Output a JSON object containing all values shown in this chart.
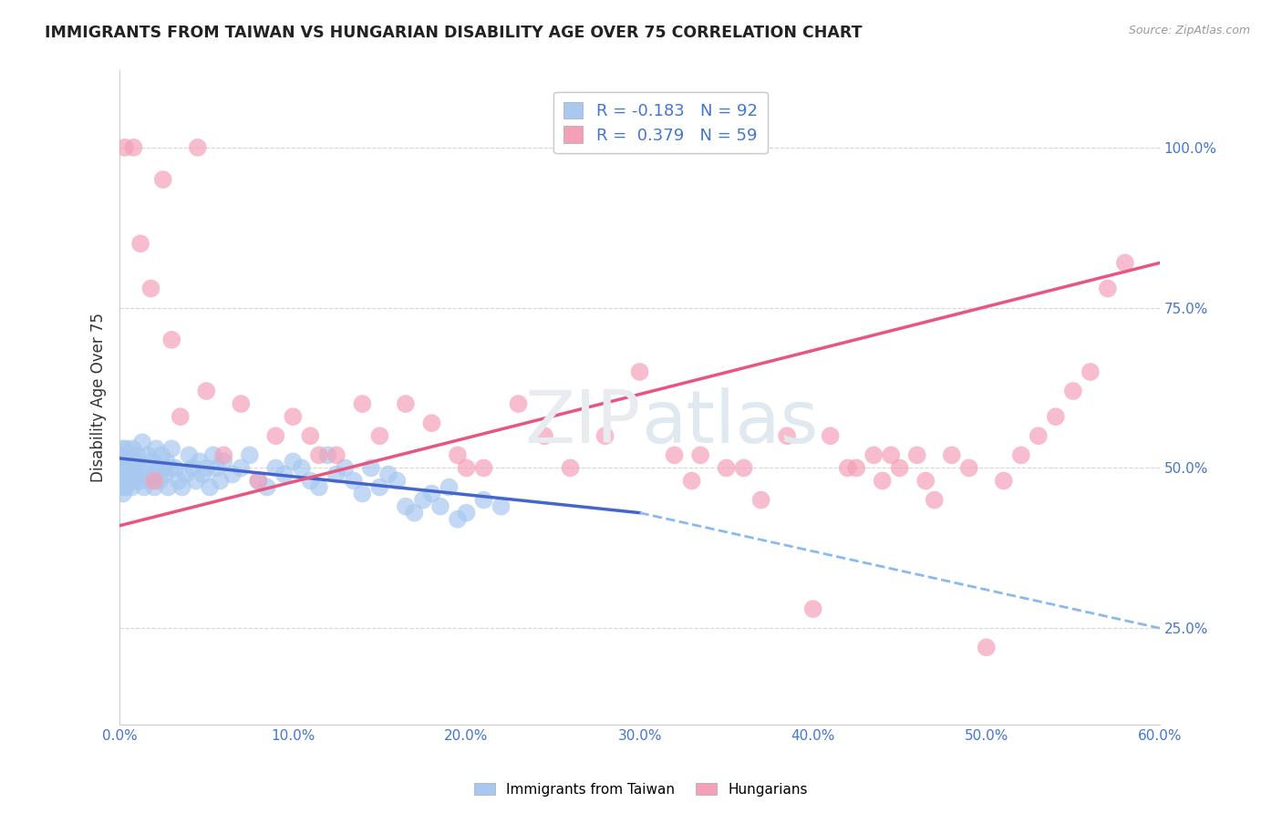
{
  "title": "IMMIGRANTS FROM TAIWAN VS HUNGARIAN DISABILITY AGE OVER 75 CORRELATION CHART",
  "source": "Source: ZipAtlas.com",
  "ylabel": "Disability Age Over 75",
  "x_tick_labels": [
    "0.0%",
    "10.0%",
    "20.0%",
    "30.0%",
    "40.0%",
    "50.0%",
    "60.0%"
  ],
  "x_tick_values": [
    0.0,
    10.0,
    20.0,
    30.0,
    40.0,
    50.0,
    60.0
  ],
  "y_tick_labels": [
    "25.0%",
    "50.0%",
    "75.0%",
    "100.0%"
  ],
  "y_tick_values": [
    25.0,
    50.0,
    75.0,
    100.0
  ],
  "xlim": [
    0.0,
    60.0
  ],
  "ylim": [
    10.0,
    112.0
  ],
  "legend_label1": "Immigrants from Taiwan",
  "legend_label2": "Hungarians",
  "r1": -0.183,
  "n1": 92,
  "r2": 0.379,
  "n2": 59,
  "color_taiwan": "#a8c8f0",
  "color_hungarian": "#f4a0b8",
  "color_trend_taiwan": "#4466cc",
  "color_trend_hungarian": "#e85580",
  "color_dashed": "#88bbee",
  "background_color": "#ffffff",
  "taiwan_x": [
    0.05,
    0.08,
    0.1,
    0.12,
    0.15,
    0.18,
    0.2,
    0.22,
    0.25,
    0.28,
    0.3,
    0.32,
    0.35,
    0.38,
    0.4,
    0.45,
    0.5,
    0.55,
    0.6,
    0.65,
    0.7,
    0.75,
    0.8,
    0.85,
    0.9,
    0.95,
    1.0,
    1.1,
    1.2,
    1.3,
    1.4,
    1.5,
    1.6,
    1.7,
    1.8,
    1.9,
    2.0,
    2.1,
    2.2,
    2.3,
    2.4,
    2.5,
    2.6,
    2.7,
    2.8,
    2.9,
    3.0,
    3.2,
    3.4,
    3.6,
    3.8,
    4.0,
    4.2,
    4.4,
    4.6,
    4.8,
    5.0,
    5.2,
    5.4,
    5.6,
    5.8,
    6.0,
    6.5,
    7.0,
    7.5,
    8.0,
    8.5,
    9.0,
    9.5,
    10.0,
    10.5,
    11.0,
    11.5,
    12.0,
    12.5,
    13.0,
    13.5,
    14.0,
    14.5,
    15.0,
    15.5,
    16.0,
    16.5,
    17.0,
    17.5,
    18.0,
    18.5,
    19.0,
    19.5,
    20.0,
    21.0,
    22.0
  ],
  "taiwan_y": [
    50,
    48,
    52,
    47,
    50,
    53,
    46,
    51,
    49,
    50,
    48,
    52,
    47,
    53,
    50,
    48,
    51,
    49,
    50,
    52,
    47,
    53,
    50,
    48,
    51,
    49,
    52,
    50,
    48,
    54,
    47,
    50,
    52,
    48,
    51,
    49,
    47,
    53,
    50,
    48,
    52,
    50,
    49,
    51,
    47,
    50,
    53,
    50,
    48,
    47,
    49,
    52,
    50,
    48,
    51,
    49,
    50,
    47,
    52,
    50,
    48,
    51,
    49,
    50,
    52,
    48,
    47,
    50,
    49,
    51,
    50,
    48,
    47,
    52,
    49,
    50,
    48,
    46,
    50,
    47,
    49,
    48,
    44,
    43,
    45,
    46,
    44,
    47,
    42,
    43,
    45,
    44
  ],
  "hungarian_x": [
    0.3,
    0.8,
    1.2,
    1.8,
    2.5,
    3.0,
    3.5,
    4.5,
    5.0,
    6.0,
    7.0,
    8.0,
    9.0,
    10.0,
    11.0,
    12.5,
    14.0,
    15.0,
    16.5,
    18.0,
    19.5,
    21.0,
    23.0,
    24.5,
    26.0,
    28.0,
    30.0,
    32.0,
    33.0,
    35.0,
    36.0,
    37.0,
    38.5,
    40.0,
    41.0,
    42.5,
    43.5,
    44.0,
    45.0,
    46.0,
    47.0,
    48.0,
    49.0,
    50.0,
    51.0,
    52.0,
    53.0,
    54.0,
    55.0,
    56.0,
    57.0,
    58.0,
    42.0,
    44.5,
    46.5,
    33.5,
    20.0,
    11.5,
    2.0
  ],
  "hungarian_y": [
    100,
    100,
    85,
    78,
    95,
    70,
    58,
    100,
    62,
    52,
    60,
    48,
    55,
    58,
    55,
    52,
    60,
    55,
    60,
    57,
    52,
    50,
    60,
    55,
    50,
    55,
    65,
    52,
    48,
    50,
    50,
    45,
    55,
    28,
    55,
    50,
    52,
    48,
    50,
    52,
    45,
    52,
    50,
    22,
    48,
    52,
    55,
    58,
    62,
    65,
    78,
    82,
    50,
    52,
    48,
    52,
    50,
    52,
    48
  ],
  "trend_taiwan_x0": 0.0,
  "trend_taiwan_x1": 30.0,
  "trend_taiwan_y0": 51.5,
  "trend_taiwan_y1": 43.0,
  "trend_dash_x0": 30.0,
  "trend_dash_x1": 60.0,
  "trend_dash_y0": 43.0,
  "trend_dash_y1": 25.0,
  "trend_hung_x0": 0.0,
  "trend_hung_x1": 60.0,
  "trend_hung_y0": 41.0,
  "trend_hung_y1": 82.0
}
